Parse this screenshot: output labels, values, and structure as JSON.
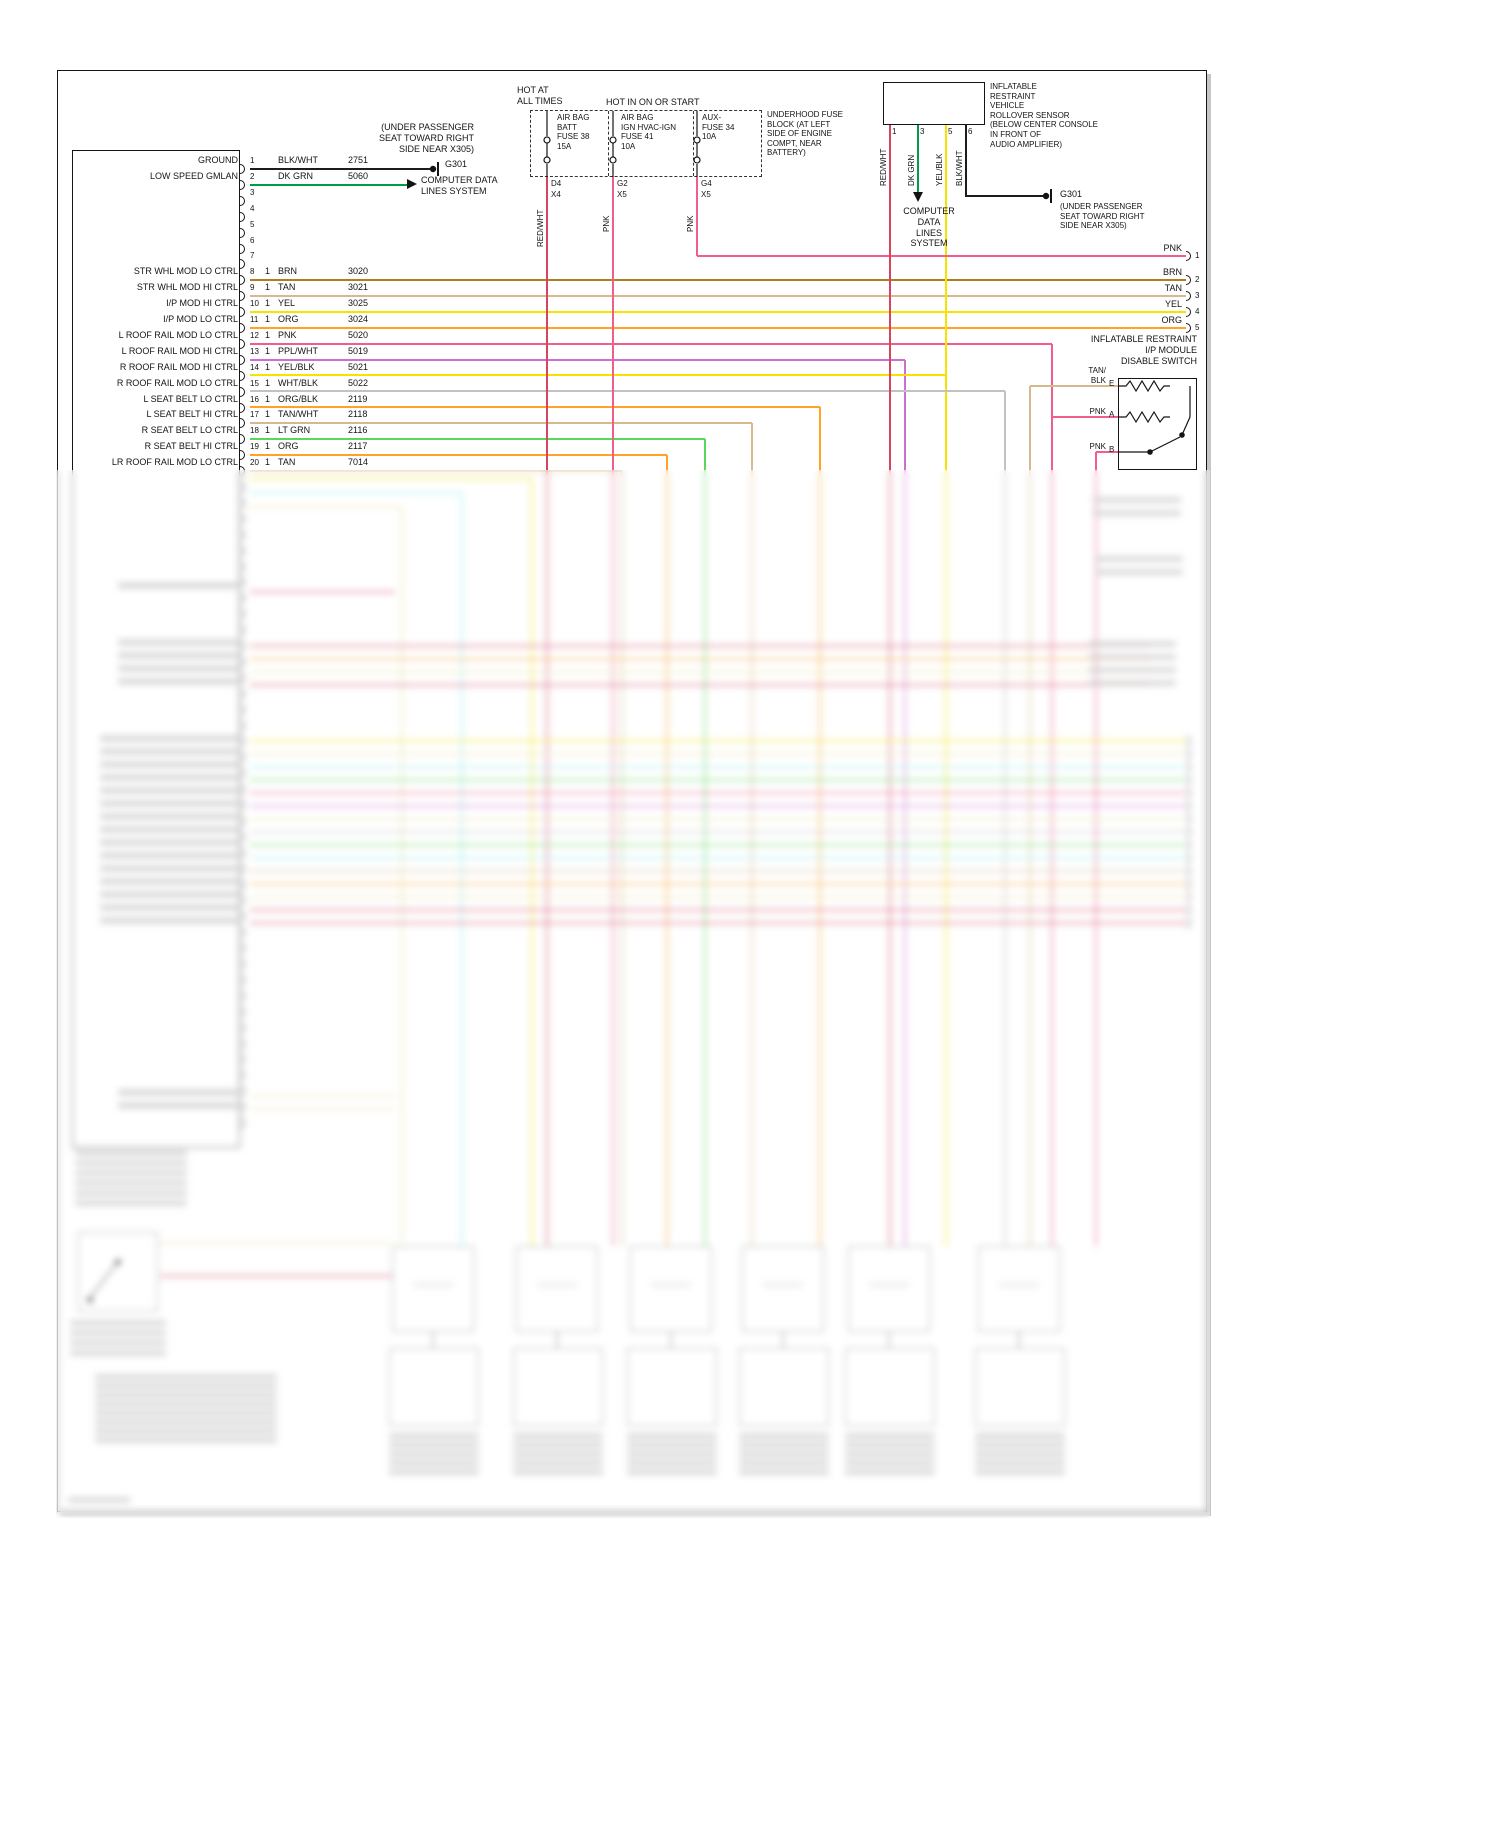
{
  "colors": {
    "black": "#1c1c1c",
    "red": "#d64560",
    "pink": "#ef5f8a",
    "brn": "#b07d20",
    "tan": "#d6b98c",
    "yel": "#f6e300",
    "org": "#ffa226",
    "dkgrn": "#009a48",
    "ltgrn": "#58d858",
    "ppl": "#cf6ed2",
    "gray": "#c2c2c2",
    "cyan": "#8fe9e9",
    "khaki": "#e8dfa4"
  },
  "fuse_block": {
    "hot_all_times": "HOT AT\nALL TIMES",
    "hot_on_start": "HOT IN ON OR START",
    "location": "UNDERHOOD FUSE\nBLOCK (AT LEFT\nSIDE OF ENGINE\nCOMPT, NEAR\nBATTERY)",
    "fuses": [
      {
        "name": "AIR BAG\nBATT\nFUSE 38\n15A"
      },
      {
        "name": "AIR BAG\nIGN HVAC-IGN\nFUSE 41\n10A"
      },
      {
        "name": "AUX-\nFUSE 34\n10A"
      }
    ],
    "taps": [
      {
        "wire": "RED/WHT",
        "cavity": "D4",
        "conn": "X4"
      },
      {
        "wire": "PNK",
        "cavity": "G2",
        "conn": "X5"
      },
      {
        "wire": "PNK",
        "cavity": "G4",
        "conn": "X5"
      }
    ]
  },
  "rollover": {
    "title": "INFLATABLE\nRESTRAINT\nVEHICLE\nROLLOVER SENSOR\n(BELOW CENTER CONSOLE\nIN FRONT OF\nAUDIO AMPLIFIER)",
    "pins": [
      {
        "wire": "RED/WHT",
        "pin": "1"
      },
      {
        "wire": "DK GRN",
        "pin": "3"
      },
      {
        "wire": "YEL/BLK",
        "pin": "5"
      },
      {
        "wire": "BLK/WHT",
        "pin": "6"
      }
    ],
    "computer_data": "COMPUTER\nDATA\nLINES\nSYSTEM",
    "ground": {
      "name": "G301",
      "loc": "(UNDER PASSENGER\nSEAT TOWARD RIGHT\nSIDE NEAR X305)"
    }
  },
  "left_ground": {
    "name": "G301",
    "loc": "(UNDER PASSENGER\nSEAT TOWARD RIGHT\nSIDE NEAR X305)",
    "computer_data": "COMPUTER DATA\nLINES SYSTEM"
  },
  "module": {
    "rows": [
      {
        "pin": "1",
        "label": "GROUND",
        "qty": "",
        "wire": "BLK/WHT",
        "ckt": "2751",
        "color": "black"
      },
      {
        "pin": "2",
        "label": "LOW SPEED GMLAN",
        "qty": "",
        "wire": "DK GRN",
        "ckt": "5060",
        "color": "dkgrn"
      },
      {
        "pin": "3",
        "label": "",
        "qty": "",
        "wire": "",
        "ckt": "",
        "color": ""
      },
      {
        "pin": "4",
        "label": "",
        "qty": "",
        "wire": "",
        "ckt": "",
        "color": ""
      },
      {
        "pin": "5",
        "label": "",
        "qty": "",
        "wire": "",
        "ckt": "",
        "color": ""
      },
      {
        "pin": "6",
        "label": "",
        "qty": "",
        "wire": "",
        "ckt": "",
        "color": ""
      },
      {
        "pin": "7",
        "label": "",
        "qty": "",
        "wire": "",
        "ckt": "",
        "color": ""
      },
      {
        "pin": "8",
        "label": "STR WHL MOD LO CTRL",
        "qty": "1",
        "wire": "BRN",
        "ckt": "3020",
        "color": "brn"
      },
      {
        "pin": "9",
        "label": "STR WHL MOD HI CTRL",
        "qty": "1",
        "wire": "TAN",
        "ckt": "3021",
        "color": "tan"
      },
      {
        "pin": "10",
        "label": "I/P MOD HI CTRL",
        "qty": "1",
        "wire": "YEL",
        "ckt": "3025",
        "color": "yel"
      },
      {
        "pin": "11",
        "label": "I/P MOD LO CTRL",
        "qty": "1",
        "wire": "ORG",
        "ckt": "3024",
        "color": "org"
      },
      {
        "pin": "12",
        "label": "L ROOF RAIL MOD LO CTRL",
        "qty": "1",
        "wire": "PNK",
        "ckt": "5020",
        "color": "pink"
      },
      {
        "pin": "13",
        "label": "L ROOF RAIL MOD HI CTRL",
        "qty": "1",
        "wire": "PPL/WHT",
        "ckt": "5019",
        "color": "ppl"
      },
      {
        "pin": "14",
        "label": "R ROOF RAIL MOD HI CTRL",
        "qty": "1",
        "wire": "YEL/BLK",
        "ckt": "5021",
        "color": "yel"
      },
      {
        "pin": "15",
        "label": "R ROOF RAIL MOD LO CTRL",
        "qty": "1",
        "wire": "WHT/BLK",
        "ckt": "5022",
        "color": "gray"
      },
      {
        "pin": "16",
        "label": "L SEAT BELT LO CTRL",
        "qty": "1",
        "wire": "ORG/BLK",
        "ckt": "2119",
        "color": "org"
      },
      {
        "pin": "17",
        "label": "L SEAT BELT HI CTRL",
        "qty": "1",
        "wire": "TAN/WHT",
        "ckt": "2118",
        "color": "tan"
      },
      {
        "pin": "18",
        "label": "R SEAT BELT LO CTRL",
        "qty": "1",
        "wire": "LT GRN",
        "ckt": "2116",
        "color": "ltgrn"
      },
      {
        "pin": "19",
        "label": "R SEAT BELT HI CTRL",
        "qty": "1",
        "wire": "ORG",
        "ckt": "2117",
        "color": "org"
      },
      {
        "pin": "20",
        "label": "LR ROOF RAIL MOD LO CTRL",
        "qty": "1",
        "wire": "TAN",
        "ckt": "7014",
        "color": "tan"
      }
    ]
  },
  "right_pins": [
    {
      "wire": "PNK",
      "pin": "1"
    },
    {
      "wire": "BRN",
      "pin": "2"
    },
    {
      "wire": "TAN",
      "pin": "3"
    },
    {
      "wire": "YEL",
      "pin": "4"
    },
    {
      "wire": "ORG",
      "pin": "5"
    }
  ],
  "disable_switch": {
    "title": "INFLATABLE RESTRAINT\nI/P MODULE\nDISABLE SWITCH",
    "pins": [
      {
        "wire": "TAN/\nBLK",
        "pin": "E"
      },
      {
        "wire": "PNK",
        "pin": "A"
      },
      {
        "wire": "PNK",
        "pin": "B"
      }
    ]
  }
}
